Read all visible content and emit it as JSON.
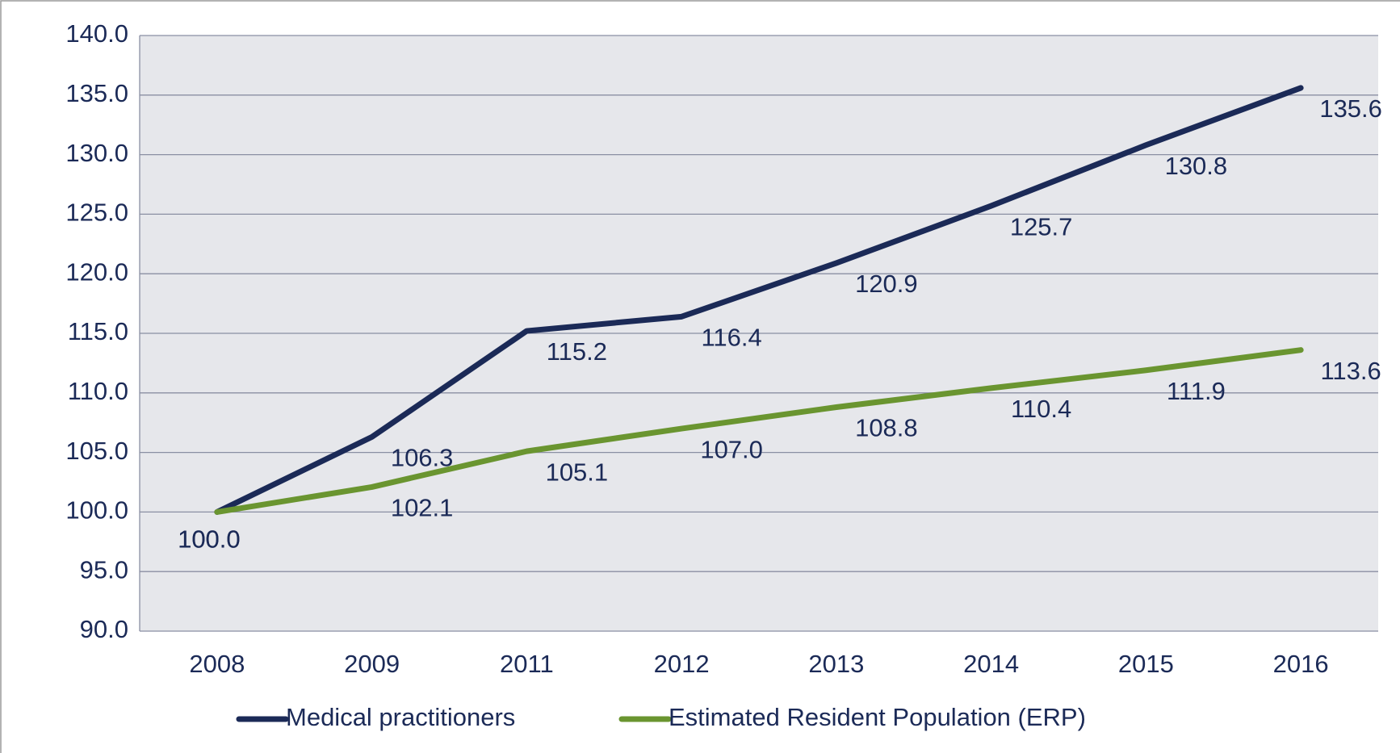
{
  "chart_data": {
    "type": "line",
    "categories": [
      "2008",
      "2009",
      "2011",
      "2012",
      "2013",
      "2014",
      "2015",
      "2016"
    ],
    "series": [
      {
        "name": "Medical practitioners",
        "color": "#1b2a57",
        "values": [
          100.0,
          106.3,
          115.2,
          116.4,
          120.9,
          125.7,
          130.8,
          135.6
        ],
        "value_labels": [
          "100.0",
          "106.3",
          "115.2",
          "116.4",
          "120.9",
          "125.7",
          "130.8",
          "135.6"
        ]
      },
      {
        "name": "Estimated Resident Population (ERP)",
        "color": "#6a9530",
        "values": [
          100.0,
          102.1,
          105.1,
          107.0,
          108.8,
          110.4,
          111.9,
          113.6
        ],
        "value_labels": [
          "100.0",
          "102.1",
          "105.1",
          "107.0",
          "108.8",
          "110.4",
          "111.9",
          "113.6"
        ]
      }
    ],
    "ylim": [
      90,
      140
    ],
    "yticks": [
      {
        "value": 90,
        "label": "90.0"
      },
      {
        "value": 95,
        "label": "95.0"
      },
      {
        "value": 100,
        "label": "100.0"
      },
      {
        "value": 105,
        "label": "105.0"
      },
      {
        "value": 110,
        "label": "110.0"
      },
      {
        "value": 115,
        "label": "115.0"
      },
      {
        "value": 120,
        "label": "120.0"
      },
      {
        "value": 125,
        "label": "125.0"
      },
      {
        "value": 130,
        "label": "130.0"
      },
      {
        "value": 135,
        "label": "135.0"
      },
      {
        "value": 140,
        "label": "140.0"
      }
    ],
    "grid": true,
    "legend": "bottom"
  }
}
